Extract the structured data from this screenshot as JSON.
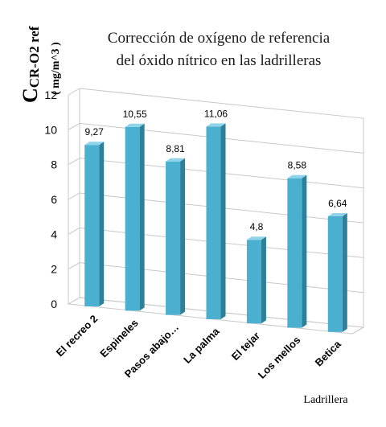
{
  "chart_data": {
    "type": "bar",
    "title_lines": [
      "Corrección de oxígeno de referencia",
      "del óxido nítrico en las ladrilleras"
    ],
    "ylabel_main": "C",
    "ylabel_sub": "CR-O2  ref",
    "ylabel_units": "( mg/m^3 )",
    "xlabel": "Ladrillera",
    "categories": [
      "El recreo 2",
      "Espineles",
      "Pasos abajo…",
      "La palma",
      "El tejar",
      "Los mellos",
      "Betica"
    ],
    "values": [
      9.27,
      10.55,
      8.81,
      11.06,
      4.8,
      8.58,
      6.64
    ],
    "data_labels": [
      "9,27",
      "10,55",
      "8,81",
      "11,06",
      "4,8",
      "8,58",
      "6,64"
    ],
    "ylim": [
      0,
      12
    ],
    "yticks": [
      0,
      2,
      4,
      6,
      8,
      10,
      12
    ],
    "grid": true,
    "legend": "none",
    "colors": {
      "bar_front": "#4bb0cf",
      "bar_side": "#2e7f99",
      "bar_top": "#8fd4e8",
      "grid": "#c8c8c8"
    }
  }
}
